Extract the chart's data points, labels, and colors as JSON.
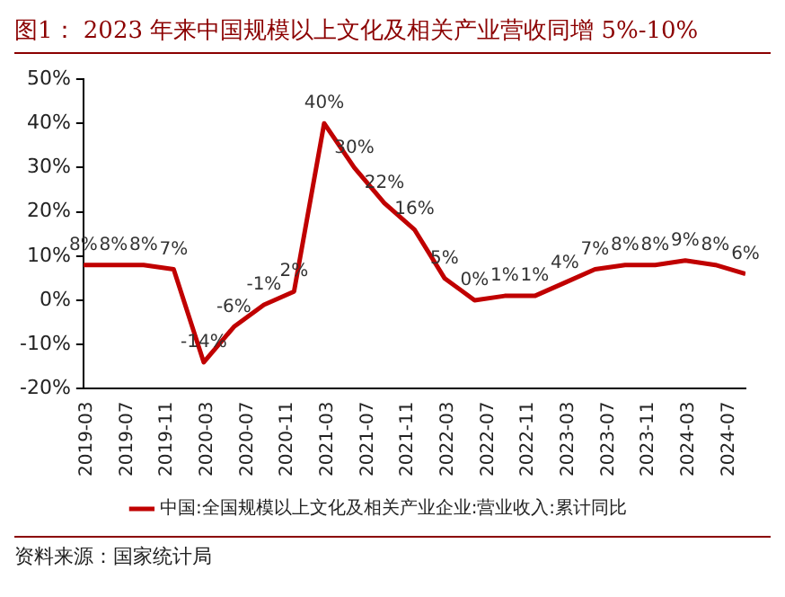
{
  "chart_data": {
    "type": "line",
    "title": "图1：  2023 年来中国规模以上文化及相关产业营收同增 5%-10%",
    "x": [
      "2019-03",
      "2019-06",
      "2019-09",
      "2019-12",
      "2020-03",
      "2020-06",
      "2020-09",
      "2020-12",
      "2021-03",
      "2021-06",
      "2021-09",
      "2021-12",
      "2022-03",
      "2022-06",
      "2022-09",
      "2022-12",
      "2023-03",
      "2023-06",
      "2023-09",
      "2023-12",
      "2024-03",
      "2024-06",
      "2024-09"
    ],
    "series": [
      {
        "name": "中国:全国规模以上文化及相关产业企业:营业收入:累计同比",
        "color": "#c00000",
        "values": [
          8,
          8,
          8,
          7,
          -14,
          -6,
          -1,
          2,
          40,
          30,
          22,
          16,
          5,
          0,
          1,
          1,
          4,
          7,
          8,
          8,
          9,
          8,
          6
        ],
        "value_labels": [
          "8%",
          "8%",
          "8%",
          "7%",
          "-14%",
          "-6%",
          "-1%",
          "2%",
          "40%",
          "30%",
          "22%",
          "16%",
          "5%",
          "0%",
          "1%",
          "1%",
          "4%",
          "7%",
          "8%",
          "8%",
          "9%",
          "8%",
          "6%"
        ]
      }
    ],
    "xlim": [
      "2019-03",
      "2024-09"
    ],
    "xticks": [
      "2019-03",
      "2019-07",
      "2019-11",
      "2020-03",
      "2020-07",
      "2020-11",
      "2021-03",
      "2021-07",
      "2021-11",
      "2022-03",
      "2022-07",
      "2022-11",
      "2023-03",
      "2023-07",
      "2023-11",
      "2024-03",
      "2024-07"
    ],
    "ylim": [
      -20,
      50
    ],
    "yticks": [
      {
        "value": -20,
        "label": "-20%"
      },
      {
        "value": -10,
        "label": "-10%"
      },
      {
        "value": 0,
        "label": "0%"
      },
      {
        "value": 10,
        "label": "10%"
      },
      {
        "value": 20,
        "label": "20%"
      },
      {
        "value": 30,
        "label": "30%"
      },
      {
        "value": 40,
        "label": "40%"
      },
      {
        "value": 50,
        "label": "50%"
      }
    ],
    "grid": false,
    "legend": "bottom",
    "marker": "none",
    "line_style": "solid",
    "annotations": [
      "资料来源：国家统计局"
    ]
  }
}
